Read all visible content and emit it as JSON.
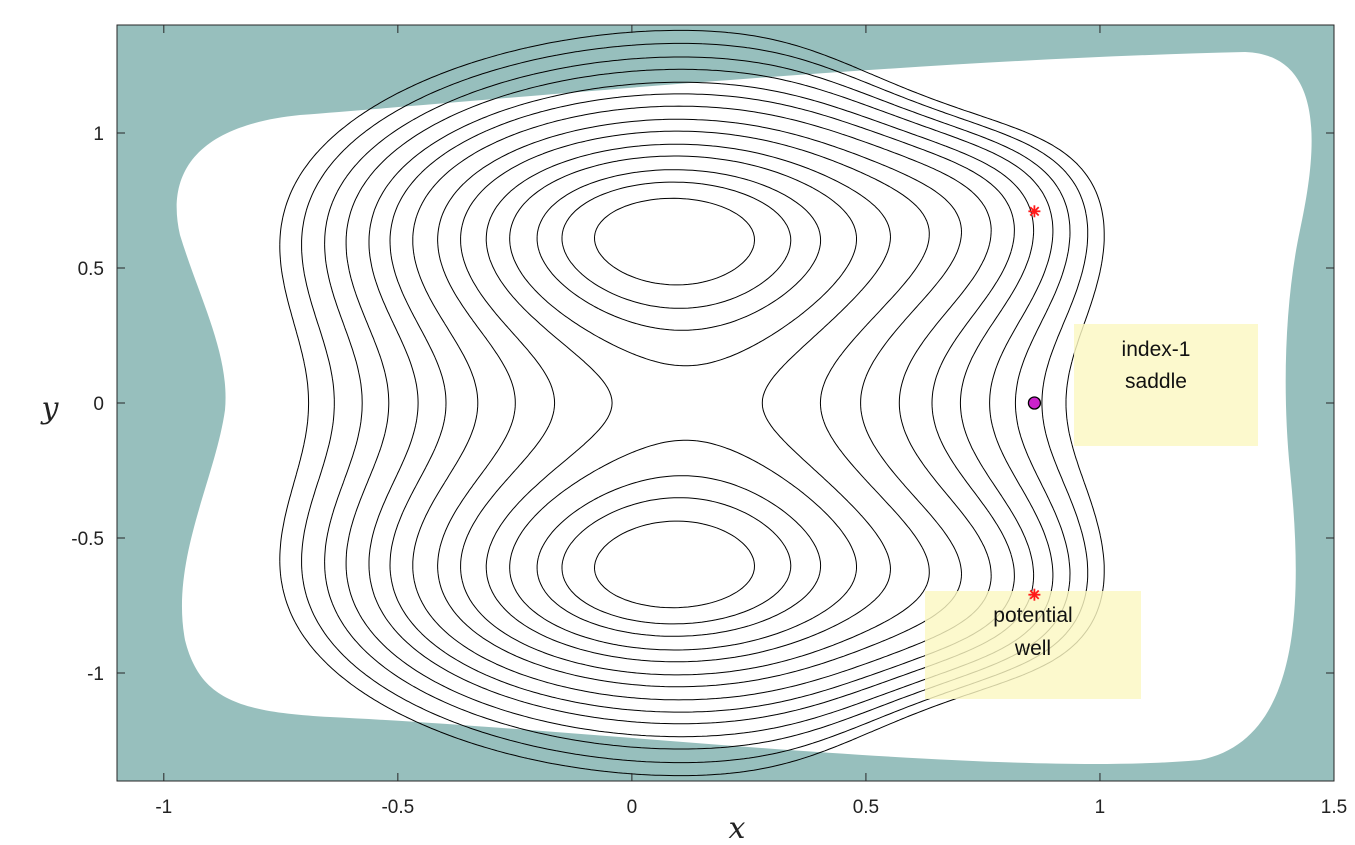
{
  "chart_data": {
    "type": "contour",
    "xlabel": "x",
    "ylabel": "y",
    "xlim": [
      -1.1,
      1.5
    ],
    "ylim": [
      -1.4,
      1.4
    ],
    "xticks": [
      -1,
      -0.5,
      0,
      0.5,
      1,
      1.5
    ],
    "xtick_labels": [
      "-1",
      "-0.5",
      "0",
      "0.5",
      "1",
      "1.5"
    ],
    "yticks": [
      -1,
      -0.5,
      0,
      0.5,
      1
    ],
    "ytick_labels": [
      "-1",
      "-0.5",
      "0",
      "0.5",
      "1"
    ],
    "grid": false,
    "colors": {
      "background": "#97bfbd",
      "domain_fill": "#ffffff",
      "contour": "#000000",
      "minimum_marker": "#ff1a1a",
      "saddle_marker": "#cc22cc",
      "annotation_box": "#fbf8c2"
    },
    "minima": [
      {
        "x": 0.86,
        "y": 0.71
      },
      {
        "x": 0.86,
        "y": -0.71
      }
    ],
    "saddle": {
      "x": 0.86,
      "y": 0.0
    },
    "annotations": [
      {
        "lines": [
          "index-1",
          "saddle"
        ],
        "box_x": [
          0.95,
          1.35
        ],
        "box_y": [
          -0.17,
          0.29
        ]
      },
      {
        "lines": [
          "potential",
          "well"
        ],
        "box_x": [
          0.63,
          1.09
        ],
        "box_y": [
          -1.11,
          -0.71
        ]
      }
    ]
  }
}
